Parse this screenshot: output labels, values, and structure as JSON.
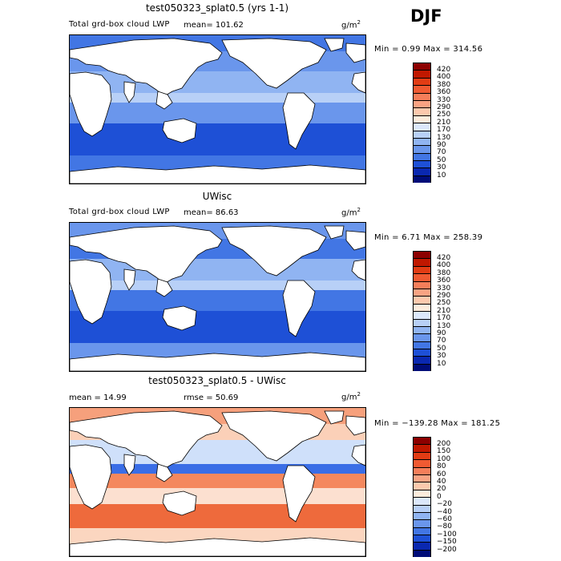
{
  "season": "DJF",
  "panels": [
    {
      "title": "test050323_splat0.5 (yrs 1-1)",
      "variable": "Total grd-box cloud LWP",
      "stat_text": "mean=  101.62",
      "units": "g/m",
      "units_exp": "2",
      "minmax": "Min =   0.99 Max = 314.56",
      "chart_data": {
        "type": "heatmap",
        "title": "test050323_splat0.5 (yrs 1-1)",
        "variable": "Total grd-box cloud LWP",
        "units": "g/m2",
        "mean": 101.62,
        "min": 0.99,
        "max": 314.56,
        "x_range": [
          0,
          360
        ],
        "y_range": [
          -90,
          90
        ],
        "levels": [
          10,
          30,
          50,
          70,
          90,
          130,
          170,
          210,
          250,
          290,
          330,
          360,
          380,
          400,
          420
        ]
      }
    },
    {
      "title": "UWisc",
      "variable": "Total grd-box cloud LWP",
      "stat_text": "mean=   86.63",
      "units": "g/m",
      "units_exp": "2",
      "minmax": "Min =   6.71 Max = 258.39",
      "chart_data": {
        "type": "heatmap",
        "title": "UWisc",
        "variable": "Total grd-box cloud LWP",
        "units": "g/m2",
        "mean": 86.63,
        "min": 6.71,
        "max": 258.39,
        "x_range": [
          0,
          360
        ],
        "y_range": [
          -90,
          90
        ],
        "levels": [
          10,
          30,
          50,
          70,
          90,
          130,
          170,
          210,
          250,
          290,
          330,
          360,
          380,
          400,
          420
        ]
      }
    },
    {
      "title": "test050323_splat0.5 - UWisc",
      "variable": "",
      "stat_text": "mean =   14.99",
      "stat2_text": "rmse =   50.69",
      "units": "g/m",
      "units_exp": "2",
      "minmax": "Min = −139.28 Max = 181.25",
      "chart_data": {
        "type": "heatmap",
        "title": "test050323_splat0.5 - UWisc",
        "units": "g/m2",
        "mean": 14.99,
        "rmse": 50.69,
        "min": -139.28,
        "max": 181.25,
        "x_range": [
          0,
          360
        ],
        "y_range": [
          -90,
          90
        ],
        "levels": [
          "−200",
          "−150",
          "−100",
          "−80",
          "−60",
          "−40",
          "−20",
          "0",
          "20",
          "40",
          "60",
          "80",
          "100",
          "150",
          "200"
        ]
      }
    }
  ],
  "colorbars": {
    "absolute": {
      "labels": [
        "420",
        "400",
        "380",
        "360",
        "330",
        "290",
        "250",
        "210",
        "170",
        "130",
        "90",
        "70",
        "50",
        "30",
        "10"
      ],
      "colors": [
        "#8c0000",
        "#c01800",
        "#e23c14",
        "#f05a32",
        "#f57e5a",
        "#f9a383",
        "#fcc9ad",
        "#fdecdc",
        "#dce8fb",
        "#b8d0f7",
        "#90b4f2",
        "#6a96ec",
        "#4276e4",
        "#1e50d6",
        "#0a28b0",
        "#000c78"
      ]
    },
    "difference": {
      "labels": [
        "200",
        "150",
        "100",
        "80",
        "60",
        "40",
        "20",
        "0",
        "−20",
        "−40",
        "−60",
        "−80",
        "−100",
        "−150",
        "−200"
      ],
      "colors": [
        "#8c0000",
        "#c01800",
        "#e23c14",
        "#f05a32",
        "#f57e5a",
        "#f9a383",
        "#fcc9ad",
        "#fdecdc",
        "#dce8fb",
        "#b8d0f7",
        "#90b4f2",
        "#6a96ec",
        "#4276e4",
        "#1e50d6",
        "#0a28b0",
        "#000c78"
      ]
    }
  }
}
